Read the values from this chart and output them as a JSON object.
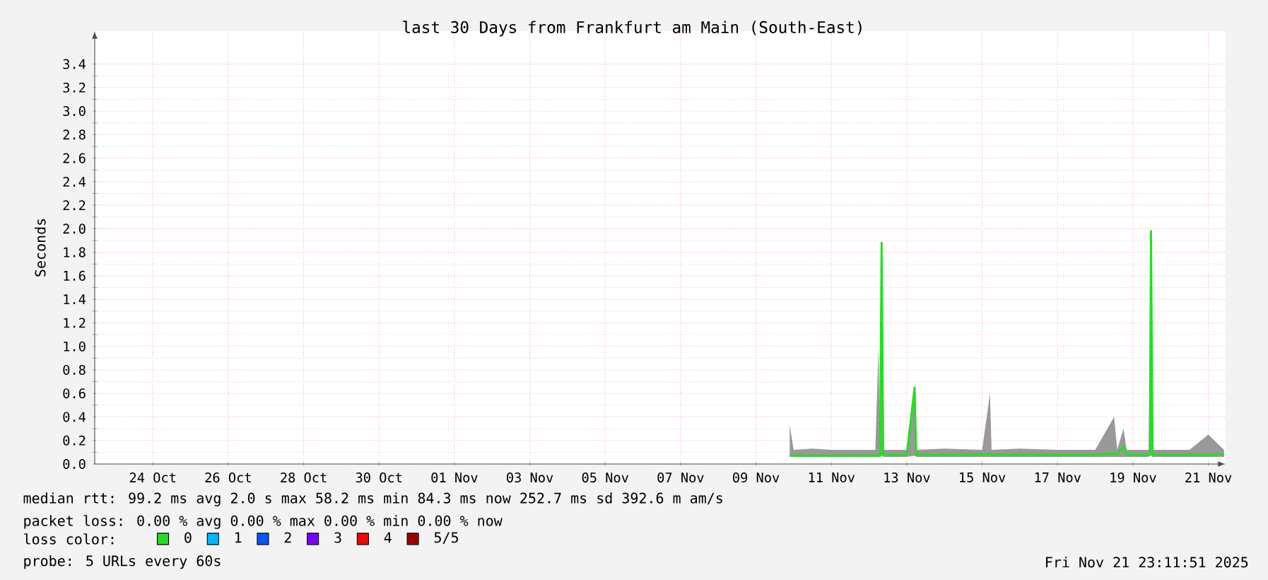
{
  "chart_data": {
    "type": "line",
    "title": "last 30 Days from Frankfurt am Main (South-East)",
    "ylabel": "Seconds",
    "xlim": [
      "2025-10-22T23:00",
      "2025-11-21T23:00"
    ],
    "ylim": [
      0,
      3.68
    ],
    "xticks": [
      {
        "value": "2025-10-24T12:00",
        "label": "24 Oct"
      },
      {
        "value": "2025-10-26T12:00",
        "label": "26 Oct"
      },
      {
        "value": "2025-10-28T12:00",
        "label": "28 Oct"
      },
      {
        "value": "2025-10-30T12:00",
        "label": "30 Oct"
      },
      {
        "value": "2025-11-01T12:00",
        "label": "01 Nov"
      },
      {
        "value": "2025-11-03T12:00",
        "label": "03 Nov"
      },
      {
        "value": "2025-11-05T12:00",
        "label": "05 Nov"
      },
      {
        "value": "2025-11-07T12:00",
        "label": "07 Nov"
      },
      {
        "value": "2025-11-09T12:00",
        "label": "09 Nov"
      },
      {
        "value": "2025-11-11T12:00",
        "label": "11 Nov"
      },
      {
        "value": "2025-11-13T12:00",
        "label": "13 Nov"
      },
      {
        "value": "2025-11-15T12:00",
        "label": "15 Nov"
      },
      {
        "value": "2025-11-17T12:00",
        "label": "17 Nov"
      },
      {
        "value": "2025-11-19T12:00",
        "label": "19 Nov"
      },
      {
        "value": "2025-11-21T12:00",
        "label": "21 Nov"
      }
    ],
    "yticks": [
      {
        "value": 0,
        "label": "0.0"
      },
      {
        "value": 0.2,
        "label": "0.2"
      },
      {
        "value": 0.4,
        "label": "0.4"
      },
      {
        "value": 0.6,
        "label": "0.6"
      },
      {
        "value": 0.8,
        "label": "0.8"
      },
      {
        "value": 1,
        "label": "1.0"
      },
      {
        "value": 1.2,
        "label": "1.2"
      },
      {
        "value": 1.4,
        "label": "1.4"
      },
      {
        "value": 1.6,
        "label": "1.6"
      },
      {
        "value": 1.8,
        "label": "1.8"
      },
      {
        "value": 2,
        "label": "2.0"
      },
      {
        "value": 2.2,
        "label": "2.2"
      },
      {
        "value": 2.4,
        "label": "2.4"
      },
      {
        "value": 2.6,
        "label": "2.6"
      },
      {
        "value": 2.8,
        "label": "2.8"
      },
      {
        "value": 3,
        "label": "3.0"
      },
      {
        "value": 3.2,
        "label": "3.2"
      },
      {
        "value": 3.4,
        "label": "3.4"
      }
    ],
    "grid": true,
    "legend": "bottom left",
    "legend_title": "loss color:",
    "series": [
      {
        "name": "0",
        "color": "#20e020",
        "x": [
          "2025-11-10T09:30",
          "2025-11-10T12:00",
          "2025-11-11T00:00",
          "2025-11-11T12:00",
          "2025-11-12T00:00",
          "2025-11-12T16:00",
          "2025-11-12T18:00",
          "2025-11-12T19:00",
          "2025-11-12T20:00",
          "2025-11-12T21:00",
          "2025-11-13T12:00",
          "2025-11-13T17:00",
          "2025-11-13T18:00",
          "2025-11-14T12:00",
          "2025-11-15T12:00",
          "2025-11-15T17:00",
          "2025-11-15T18:00",
          "2025-11-16T12:00",
          "2025-11-17T12:00",
          "2025-11-18T12:00",
          "2025-11-19T00:00",
          "2025-11-19T02:00",
          "2025-11-19T06:00",
          "2025-11-19T08:00",
          "2025-11-19T22:00",
          "2025-11-19T23:00",
          "2025-11-19T23:30",
          "2025-11-20T00:30",
          "2025-11-20T12:00",
          "2025-11-21T00:00",
          "2025-11-21T12:00",
          "2025-11-21T22:00"
        ],
        "values": [
          0.08,
          0.07,
          0.07,
          0.07,
          0.07,
          0.07,
          0.08,
          0.07,
          1.88,
          0.08,
          0.08,
          0.65,
          0.08,
          0.08,
          0.08,
          0.09,
          0.08,
          0.08,
          0.08,
          0.08,
          0.09,
          0.08,
          0.15,
          0.08,
          0.08,
          0.1,
          1.98,
          0.08,
          0.08,
          0.08,
          0.08,
          0.08
        ],
        "lower": [
          0.06,
          0.06,
          0.06,
          0.06,
          0.06,
          0.06,
          0.06,
          0.06,
          0.07,
          0.06,
          0.06,
          0.07,
          0.06,
          0.06,
          0.06,
          0.06,
          0.06,
          0.06,
          0.06,
          0.06,
          0.06,
          0.06,
          0.06,
          0.06,
          0.06,
          0.07,
          0.07,
          0.06,
          0.06,
          0.06,
          0.06,
          0.06
        ],
        "upper": [
          0.33,
          0.12,
          0.13,
          0.12,
          0.12,
          0.12,
          1.0,
          0.12,
          1.88,
          0.12,
          0.12,
          0.66,
          0.12,
          0.13,
          0.12,
          0.6,
          0.12,
          0.13,
          0.12,
          0.12,
          0.4,
          0.12,
          0.3,
          0.12,
          0.12,
          1.8,
          1.98,
          0.12,
          0.12,
          0.12,
          0.25,
          0.12
        ]
      },
      {
        "name": "1",
        "color": "#00b8ff"
      },
      {
        "name": "2",
        "color": "#0059ff"
      },
      {
        "name": "3",
        "color": "#7e00ff"
      },
      {
        "name": "4",
        "color": "#ff0000"
      },
      {
        "name": "5/5",
        "color": "#a10000"
      }
    ],
    "annotations": [
      "median rtt:  99.2 ms avg  2.0  s max  58.2 ms min  84.3 ms now  252.7 ms sd  392.6 m am/s",
      "packet loss: 0.00 % avg  0.00 % max  0.00 % min  0.00 % now",
      "probe:       5 URLs every 60s",
      "Fri Nov 21 23:11:51 2025"
    ]
  }
}
